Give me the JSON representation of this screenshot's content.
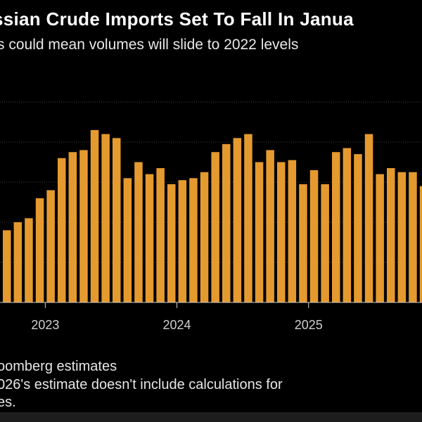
{
  "header": {
    "title": "ssian Crude Imports Set To Fall In Janua",
    "subtitle": "s could mean volumes will slide to 2022 levels"
  },
  "footer": {
    "line1": "oomberg estimates",
    "line2": "026's estimate doesn't include calculations for",
    "line3": "es."
  },
  "colors": {
    "bar": "#E59A2F",
    "grid": "#444444",
    "background": "#000000"
  },
  "chart_data": {
    "type": "bar",
    "title": "",
    "xlabel": "",
    "ylabel": "",
    "grid": true,
    "x_tick_labels": [
      "2023",
      "2024",
      "2025"
    ],
    "x_tick_positions": [
      "2023-01",
      "2024-01",
      "2025-01"
    ],
    "categories": [
      "2022-09",
      "2022-10",
      "2022-11",
      "2022-12",
      "2023-01",
      "2023-02",
      "2023-03",
      "2023-04",
      "2023-05",
      "2023-06",
      "2023-07",
      "2023-08",
      "2023-09",
      "2023-10",
      "2023-11",
      "2023-12",
      "2024-01",
      "2024-02",
      "2024-03",
      "2024-04",
      "2024-05",
      "2024-06",
      "2024-07",
      "2024-08",
      "2024-09",
      "2024-10",
      "2024-11",
      "2024-12",
      "2025-01",
      "2025-02",
      "2025-03",
      "2025-04",
      "2025-05",
      "2025-06",
      "2025-07",
      "2025-08",
      "2025-09",
      "2025-10",
      "2025-11"
    ],
    "values": [
      1.8,
      2.0,
      2.1,
      2.6,
      2.8,
      3.6,
      3.75,
      3.8,
      4.3,
      4.2,
      4.1,
      3.1,
      3.5,
      3.2,
      3.35,
      2.95,
      3.05,
      3.1,
      3.25,
      3.75,
      3.95,
      4.1,
      4.2,
      3.5,
      3.8,
      3.5,
      3.55,
      2.95,
      3.3,
      2.95,
      3.75,
      3.85,
      3.7,
      4.2,
      3.2,
      3.35,
      3.25,
      3.25,
      2.9
    ],
    "ylim": [
      0,
      5
    ]
  }
}
